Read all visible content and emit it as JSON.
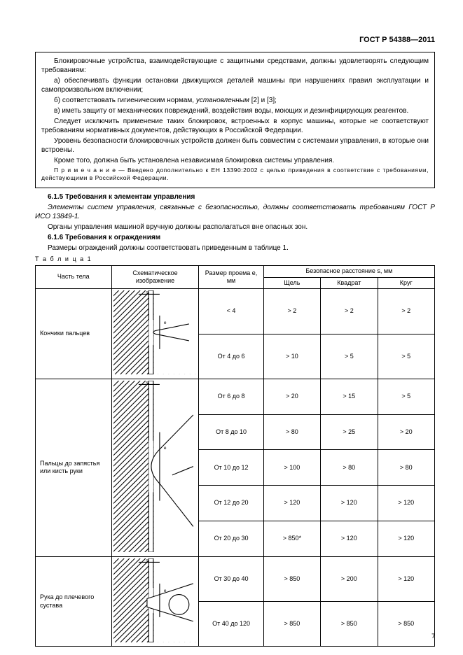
{
  "header": "ГОСТ Р 54388—2011",
  "box": {
    "p1": "Блокировочные устройства, взаимодействующие с защитными средствами, должны удовлетворять следующим требованиям:",
    "a": "а)  обеспечивать функции остановки движущихся деталей машины при нарушениях правил эксплуатации и самопроизвольном включении;",
    "b_pre": "б)  соответствовать гигиеническим нормам, ",
    "b_it": "установленным",
    "b_post": " [2] и [3];",
    "c": "в)  иметь защиту от механических повреждений, воздействия воды, моющих и дезинфицирующих реагентов.",
    "p2": "Следует исключить применение таких блокировок, встроенных в корпус машины, которые не соответствуют требованиям нормативных документов, действующих в Российской Федерации.",
    "p3": "Уровень безопасности блокировочных устройств должен быть совместим с системами управления, в которые они встроены.",
    "p4": "Кроме того, должна быть установлена независимая блокировка системы управления.",
    "note": "П р и м е ч а н и е — Введено дополнительно к ЕН 13390:2002 с целью приведения в соответствие с требованиями, действующими в Российской Федерации."
  },
  "sec": {
    "h615": "6.1.5 Требования к элементам управления",
    "p615a_pre": "Элементы систем управления, связанные с безопасностью, должны соответствовать требованиям ",
    "p615a_it": "ГОСТ Р ИСО 13849-1.",
    "p615b": "Органы управления машиной вручную должны располагаться вне опасных зон.",
    "h616": "6.1.6 Требования к ограждениям",
    "p616": "Размеры ограждений должны соответствовать приведенным в таблице 1."
  },
  "tlabel": "Т а б л и ц а  1",
  "table": {
    "headers": {
      "c1": "Часть тела",
      "c2": "Схематическое изображение",
      "c3": "Размер проема e, мм",
      "c4": "Безопасное расстояние s, мм",
      "c4a": "Щель",
      "c4b": "Квадрат",
      "c4c": "Круг"
    },
    "rows": [
      {
        "part": "Кончики пальцев",
        "sub": [
          {
            "e": "< 4",
            "s1": "> 2",
            "s2": "> 2",
            "s3": "> 2"
          },
          {
            "e": "От 4 до 6",
            "s1": "> 10",
            "s2": "> 5",
            "s3": "> 5"
          }
        ]
      },
      {
        "part": "Пальцы до запястья или кисть руки",
        "sub": [
          {
            "e": "От 6 до 8",
            "s1": "> 20",
            "s2": "> 15",
            "s3": "> 5"
          },
          {
            "e": "От 8 до 10",
            "s1": "> 80",
            "s2": "> 25",
            "s3": "> 20"
          },
          {
            "e": "От 10 до 12",
            "s1": "> 100",
            "s2": "> 80",
            "s3": "> 80"
          },
          {
            "e": "От 12 до 20",
            "s1": "> 120",
            "s2": "> 120",
            "s3": "> 120"
          },
          {
            "e": "От 20 до 30",
            "s1": "> 850*",
            "s2": "> 120",
            "s3": "> 120"
          }
        ]
      },
      {
        "part": "Рука до плечевого сустава",
        "sub": [
          {
            "e": "От 30 до 40",
            "s1": "> 850",
            "s2": "> 200",
            "s3": "> 120"
          },
          {
            "e": "От 40 до 120",
            "s1": "> 850",
            "s2": "> 850",
            "s3": "> 850"
          }
        ]
      }
    ]
  },
  "pagenum": "7",
  "style": {
    "hatch_stroke": "#000000",
    "hatch_width": 1,
    "row_heights": {
      "g1": 55,
      "g2": 45,
      "g3": 55
    }
  }
}
